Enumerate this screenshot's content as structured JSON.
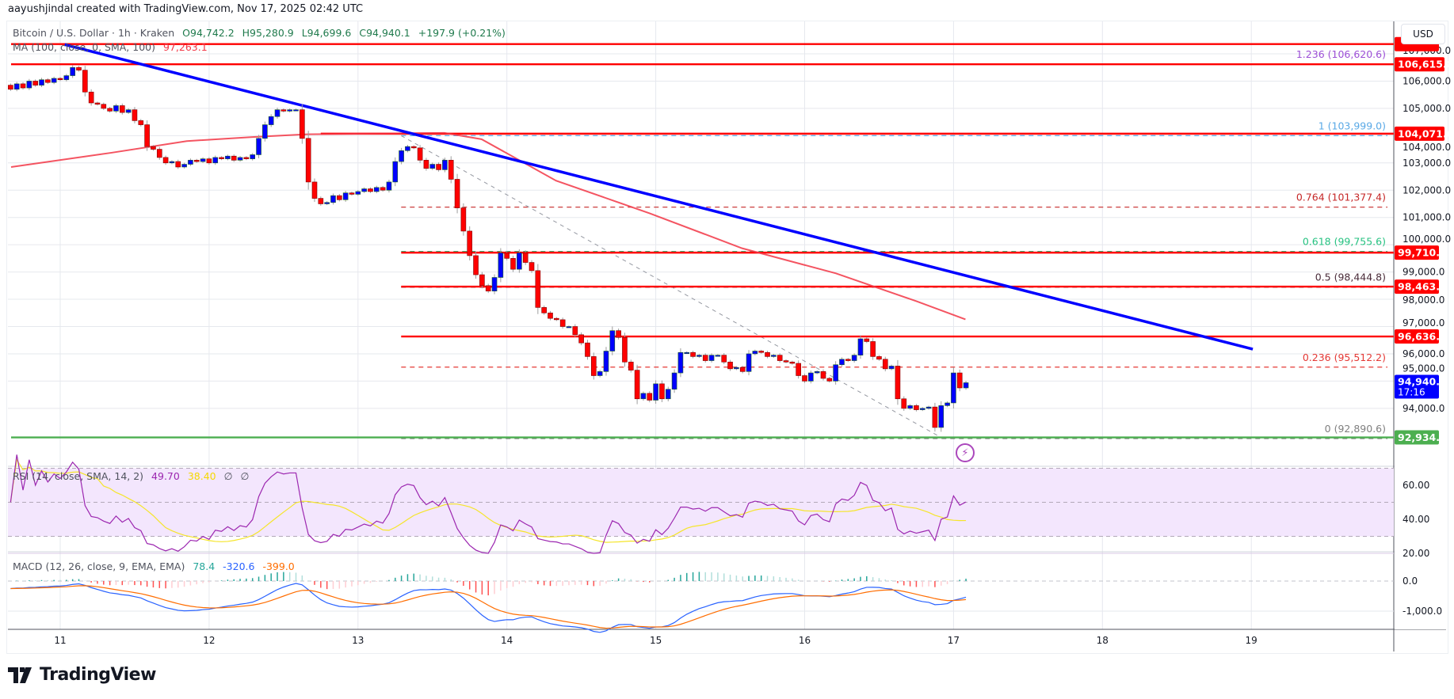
{
  "attribution": "aayushjindal created with TradingView.com, Nov 17, 2025 02:42 UTC",
  "symbol": {
    "name": "Bitcoin / U.S. Dollar · 1h · Kraken",
    "open": "O94,742.2",
    "high": "H95,280.9",
    "low": "L94,699.6",
    "close": "C94,940.1",
    "change": "+197.9 (+0.21%)"
  },
  "ma_legend": {
    "label": "MA (100, close, 0, SMA, 100)",
    "value": "97,263.1"
  },
  "rsi_legend": {
    "label": "RSI (14, close, SMA, 14, 2)",
    "rsi": "49.70",
    "sma": "38.40",
    "v3": "∅",
    "v4": "∅"
  },
  "macd_legend": {
    "label": "MACD (12, 26, close, 9, EMA, EMA)",
    "hist": "78.4",
    "macd": "-320.6",
    "signal": "-399.0"
  },
  "currency": "USD",
  "logo_text": "TradingView",
  "colors": {
    "up": "#0000ff",
    "down": "#ff0000",
    "ma": "#f23645",
    "trendline": "#0000ff",
    "support": "#4caf50",
    "rsi": "#9c27b0",
    "rsi_sma": "#f5e52a",
    "macd": "#2962ff",
    "signal": "#ff6d00"
  },
  "chart_data": {
    "type": "candlestick",
    "interval": "1h",
    "start": "2025-11-10T16:00",
    "closes": [
      105700,
      105900,
      105750,
      106000,
      105850,
      106050,
      105950,
      106100,
      106050,
      106200,
      106500,
      106400,
      105600,
      105200,
      105150,
      105000,
      104900,
      105100,
      104850,
      104950,
      104550,
      104400,
      103600,
      103500,
      103200,
      103000,
      103050,
      102850,
      102950,
      103100,
      103050,
      103150,
      103000,
      103200,
      103150,
      103250,
      103100,
      103200,
      103150,
      103300,
      103900,
      104400,
      104700,
      104950,
      104900,
      104950,
      104950,
      103900,
      102300,
      101700,
      101500,
      101550,
      101800,
      101650,
      101900,
      101850,
      101950,
      102050,
      101950,
      102100,
      102000,
      102300,
      103050,
      103450,
      103600,
      103550,
      103100,
      102800,
      102950,
      102750,
      103100,
      102400,
      101350,
      100500,
      99600,
      98900,
      98500,
      98300,
      98800,
      99700,
      99500,
      99100,
      99700,
      99350,
      99050,
      97700,
      97500,
      97300,
      97250,
      97000,
      97000,
      96700,
      96400,
      95900,
      95200,
      95350,
      96100,
      96850,
      96600,
      95700,
      95400,
      94350,
      94550,
      94300,
      94900,
      94350,
      94700,
      95300,
      96050,
      96050,
      95900,
      95950,
      95750,
      95950,
      95950,
      95700,
      95450,
      95500,
      95350,
      96000,
      96100,
      96050,
      95900,
      95950,
      95750,
      95700,
      95650,
      95200,
      95000,
      95300,
      95350,
      95100,
      95000,
      95600,
      95800,
      95750,
      95950,
      96550,
      96450,
      95900,
      95800,
      95450,
      95550,
      94350,
      94000,
      94100,
      93950,
      94000,
      94050,
      93300,
      94100,
      94200,
      95300,
      94750,
      94940
    ],
    "ma100": [
      [
        10.67,
        102850
      ],
      [
        11.34,
        103370
      ],
      [
        11.85,
        103800
      ],
      [
        12.29,
        103950
      ],
      [
        12.66,
        104050
      ],
      [
        13.58,
        104100
      ],
      [
        13.83,
        103870
      ],
      [
        14.33,
        102350
      ],
      [
        14.96,
        101150
      ],
      [
        15.58,
        99870
      ],
      [
        16.21,
        98950
      ],
      [
        16.75,
        97930
      ],
      [
        17.08,
        97263
      ]
    ],
    "trendline": [
      [
        11.03,
        107340
      ],
      [
        19.01,
        96170
      ]
    ],
    "fib_diagonal": [
      [
        13.29,
        103999
      ],
      [
        16.93,
        92890.6
      ]
    ],
    "horizontal_lines": [
      {
        "price": 107357,
        "from": 10.67,
        "color": "#ff0000",
        "tag": ""
      },
      {
        "price": 106615.8,
        "from": 10.67,
        "color": "#ff0000",
        "tag": "106,615.8"
      },
      {
        "price": 104071.6,
        "from": 12.75,
        "color": "#ff0000",
        "tag": "104,071.6"
      },
      {
        "price": 99710.3,
        "from": 13.29,
        "color": "#ff0000",
        "tag": "99,710.3"
      },
      {
        "price": 98463.2,
        "from": 13.29,
        "color": "#ff0000",
        "tag": "98,463.2"
      },
      {
        "price": 96636.1,
        "from": 13.29,
        "color": "#ff0000",
        "tag": "96,636.1"
      },
      {
        "price": 92934.7,
        "from": 10.67,
        "color": "#4caf50",
        "tag": "92,934.7"
      }
    ],
    "fib_levels": [
      {
        "ratio": "1.236",
        "price": 106620.6,
        "label": "1.236 (106,620.6)",
        "color": "#9c4fd6"
      },
      {
        "ratio": "1",
        "price": 103999.0,
        "label": "1 (103,999.0)",
        "color": "#5aa9e6"
      },
      {
        "ratio": "0.764",
        "price": 101377.4,
        "label": "0.764 (101,377.4)",
        "color": "#c62828"
      },
      {
        "ratio": "0.618",
        "price": 99755.6,
        "label": "0.618 (99,755.6)",
        "color": "#26c281"
      },
      {
        "ratio": "0.5",
        "price": 98444.8,
        "label": "0.5 (98,444.8)",
        "color": "#4a2c3a"
      },
      {
        "ratio": "0.236",
        "price": 95512.2,
        "label": "0.236 (95,512.2)",
        "color": "#e53935"
      },
      {
        "ratio": "0",
        "price": 92890.6,
        "label": "0 (92,890.6)",
        "color": "#808080"
      }
    ],
    "fib_start": 13.29,
    "last_price": {
      "price": 94940.1,
      "label": "94,940.1",
      "countdown": "17:16"
    },
    "price_ticks": [
      "107,000.0",
      "106,000.0",
      "105,000.0",
      "104,000.0",
      "103,000.0",
      "102,000.0",
      "101,000.0",
      "100,000.0",
      "99,000.0",
      "98,000.0",
      "97,000.0",
      "96,000.0",
      "95,000.0",
      "94,000.0"
    ],
    "price_tick_values": [
      107000,
      106000,
      105000,
      104000,
      103000,
      102000,
      101000,
      100000,
      99000,
      98000,
      97000,
      96000,
      95000,
      94000
    ],
    "date_ticks": [
      "11",
      "12",
      "13",
      "14",
      "15",
      "16",
      "17",
      "18",
      "19"
    ],
    "rsi_ticks": [
      "60.00",
      "40.00",
      "20.00"
    ],
    "rsi_tick_values": [
      60,
      40,
      20
    ],
    "rsi_bands": [
      70,
      50,
      30
    ],
    "macd_ticks": [
      "0.0",
      "-1,000.0"
    ],
    "macd_tick_values": [
      0,
      -1000
    ]
  }
}
